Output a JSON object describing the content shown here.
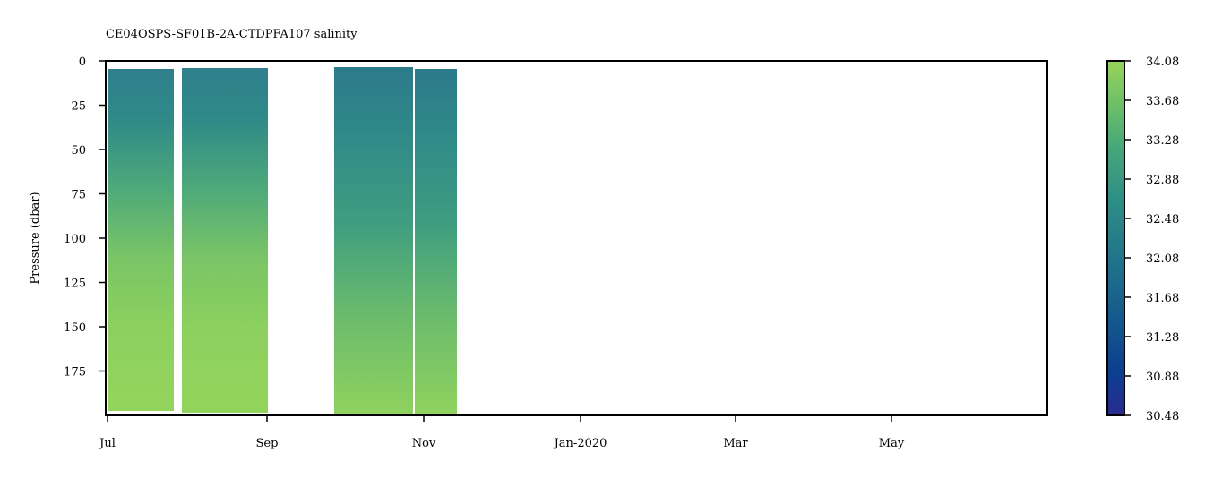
{
  "chart_data": {
    "type": "heatmap",
    "title": "CE04OSPS-SF01B-2A-CTDPFA107 salinity",
    "ylabel": "Pressure (dbar)",
    "xlabel": "",
    "x_ticks": [
      "Jul",
      "Sep",
      "Nov",
      "Jan-2020",
      "Mar",
      "May"
    ],
    "y_ticks": [
      0,
      25,
      50,
      75,
      100,
      125,
      150,
      175
    ],
    "ylim": [
      200,
      0
    ],
    "y_inverted": true,
    "grid": false,
    "colorbar": {
      "label": "",
      "range": [
        30.48,
        34.08
      ],
      "ticks": [
        "30.48",
        "30.88",
        "31.28",
        "31.68",
        "32.08",
        "32.48",
        "32.88",
        "33.28",
        "33.68",
        "34.08"
      ],
      "colormap": "viridis-like (dark blue to light green)",
      "low_color": "#2b2a8f",
      "high_color": "#98d45a"
    },
    "data_segments": [
      {
        "start": "Jul",
        "end": "late Jul",
        "top_dbar": 4,
        "bottom_dbar": 197
      },
      {
        "start": "late Jul",
        "end": "Sep",
        "top_dbar": 4,
        "bottom_dbar": 198
      },
      {
        "start": "mid Sep",
        "end": "late Oct",
        "top_dbar": 3,
        "bottom_dbar": 200
      },
      {
        "start": "late Oct",
        "end": "mid Nov",
        "top_dbar": 5,
        "bottom_dbar": 200
      }
    ],
    "profile_salinity": [
      {
        "pressure": 5,
        "salinity": 31.9
      },
      {
        "pressure": 25,
        "salinity": 32.3
      },
      {
        "pressure": 50,
        "salinity": 32.8
      },
      {
        "pressure": 75,
        "salinity": 33.2
      },
      {
        "pressure": 100,
        "salinity": 33.5
      },
      {
        "pressure": 150,
        "salinity": 33.8
      },
      {
        "pressure": 200,
        "salinity": 33.95
      }
    ]
  }
}
